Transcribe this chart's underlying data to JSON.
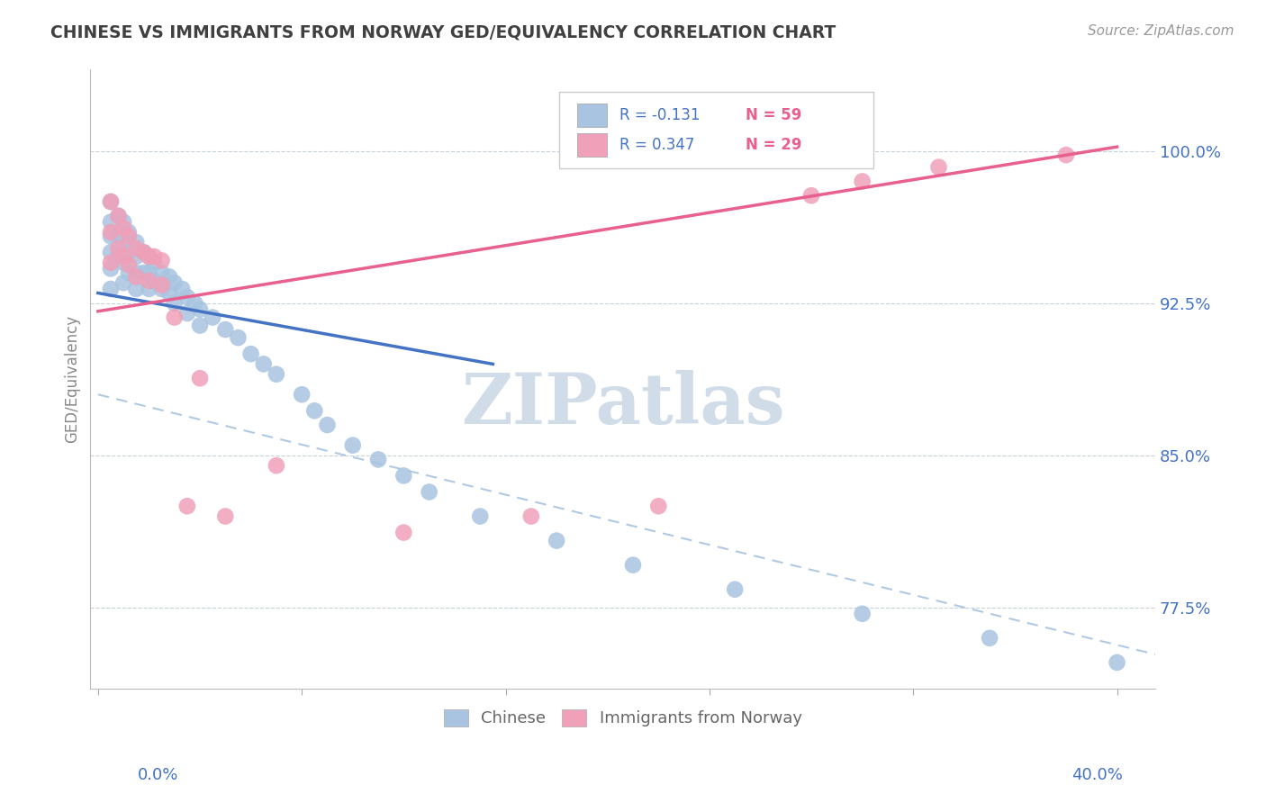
{
  "title": "CHINESE VS IMMIGRANTS FROM NORWAY GED/EQUIVALENCY CORRELATION CHART",
  "source": "Source: ZipAtlas.com",
  "ylabel": "GED/Equivalency",
  "ytick_positions": [
    0.775,
    0.85,
    0.925,
    1.0
  ],
  "ytick_labels": [
    "77.5%",
    "85.0%",
    "92.5%",
    "100.0%"
  ],
  "ymin": 0.735,
  "ymax": 1.04,
  "xmin": -0.003,
  "xmax": 0.415,
  "legend_r1": "R = -0.131",
  "legend_n1": "N = 59",
  "legend_r2": "R = 0.347",
  "legend_n2": "N = 29",
  "chinese_color": "#a8c4e0",
  "norway_color": "#f0a0b8",
  "chinese_line_color": "#4472c4",
  "norway_line_color": "#e86090",
  "dashed_line_color": "#a8c4e0",
  "watermark_color": "#d0dce8",
  "title_color": "#404040",
  "axis_label_color": "#4472c4",
  "grid_color": "#c8d0d8",
  "chinese_x": [
    0.005,
    0.005,
    0.005,
    0.005,
    0.005,
    0.005,
    0.008,
    0.008,
    0.008,
    0.01,
    0.01,
    0.01,
    0.01,
    0.012,
    0.012,
    0.012,
    0.015,
    0.015,
    0.015,
    0.015,
    0.018,
    0.018,
    0.02,
    0.02,
    0.02,
    0.022,
    0.022,
    0.025,
    0.025,
    0.028,
    0.028,
    0.03,
    0.03,
    0.033,
    0.035,
    0.035,
    0.038,
    0.04,
    0.04,
    0.045,
    0.05,
    0.055,
    0.06,
    0.065,
    0.07,
    0.08,
    0.085,
    0.09,
    0.1,
    0.11,
    0.12,
    0.13,
    0.15,
    0.18,
    0.21,
    0.25,
    0.3,
    0.35,
    0.4
  ],
  "chinese_y": [
    0.975,
    0.965,
    0.958,
    0.95,
    0.942,
    0.932,
    0.968,
    0.958,
    0.948,
    0.965,
    0.955,
    0.945,
    0.935,
    0.96,
    0.95,
    0.94,
    0.955,
    0.948,
    0.94,
    0.932,
    0.95,
    0.94,
    0.948,
    0.94,
    0.932,
    0.945,
    0.936,
    0.94,
    0.932,
    0.938,
    0.93,
    0.935,
    0.925,
    0.932,
    0.928,
    0.92,
    0.925,
    0.922,
    0.914,
    0.918,
    0.912,
    0.908,
    0.9,
    0.895,
    0.89,
    0.88,
    0.872,
    0.865,
    0.855,
    0.848,
    0.84,
    0.832,
    0.82,
    0.808,
    0.796,
    0.784,
    0.772,
    0.76,
    0.748
  ],
  "norway_x": [
    0.005,
    0.005,
    0.005,
    0.008,
    0.008,
    0.01,
    0.01,
    0.012,
    0.012,
    0.015,
    0.015,
    0.018,
    0.02,
    0.02,
    0.022,
    0.025,
    0.025,
    0.03,
    0.035,
    0.04,
    0.05,
    0.07,
    0.12,
    0.17,
    0.22,
    0.28,
    0.3,
    0.33,
    0.38
  ],
  "norway_y": [
    0.975,
    0.96,
    0.945,
    0.968,
    0.952,
    0.962,
    0.948,
    0.958,
    0.944,
    0.952,
    0.938,
    0.95,
    0.948,
    0.936,
    0.948,
    0.946,
    0.934,
    0.918,
    0.825,
    0.888,
    0.82,
    0.845,
    0.812,
    0.82,
    0.825,
    0.978,
    0.985,
    0.992,
    0.998
  ],
  "chinese_trend_x": [
    0.0,
    0.155
  ],
  "chinese_trend_y": [
    0.93,
    0.895
  ],
  "norway_trend_x": [
    0.0,
    0.4
  ],
  "norway_trend_y": [
    0.921,
    1.002
  ],
  "dashed_trend_x": [
    0.0,
    0.415
  ],
  "dashed_trend_y": [
    0.88,
    0.752
  ]
}
